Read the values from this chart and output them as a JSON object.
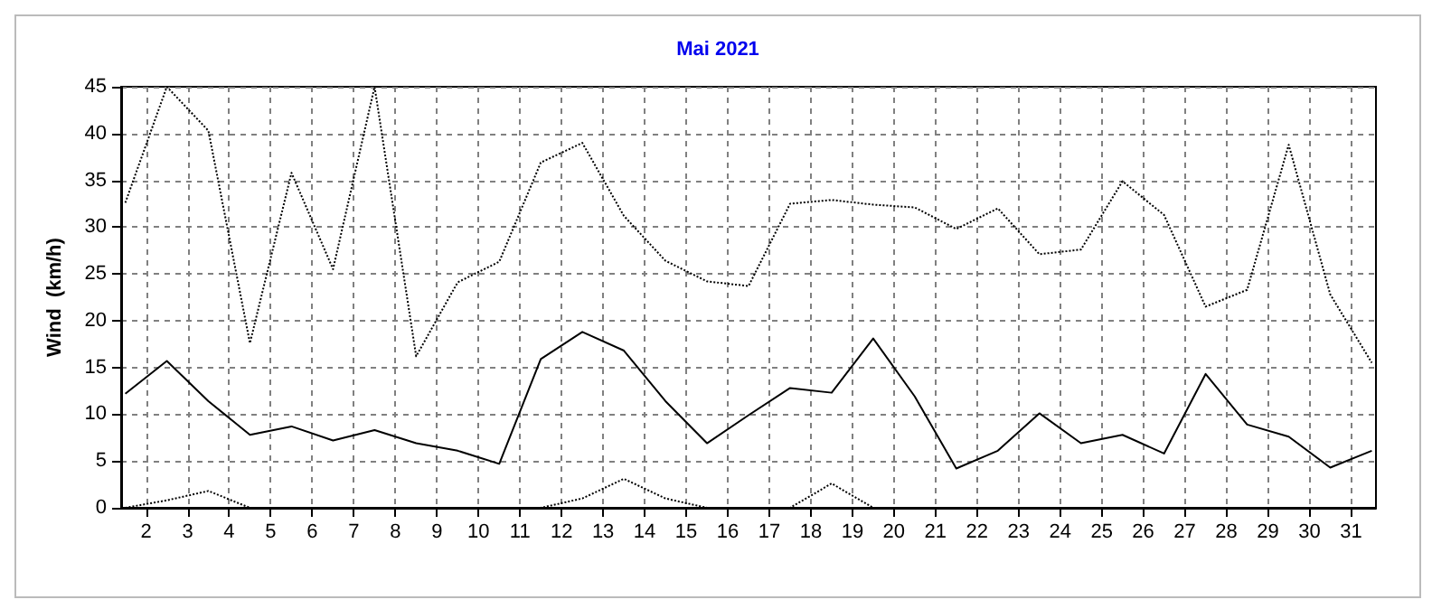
{
  "chart_data": {
    "type": "line",
    "title": "Mai 2021",
    "ylabel": "Wind  (km/h)",
    "x": [
      1.5,
      2.5,
      3.5,
      4.5,
      5.5,
      6.5,
      7.5,
      8.5,
      9.5,
      10.5,
      11.5,
      12.5,
      13.5,
      14.5,
      15.5,
      16.5,
      17.5,
      18.5,
      19.5,
      20.5,
      21.5,
      22.5,
      23.5,
      24.5,
      25.5,
      26.5,
      27.5,
      28.5,
      29.5,
      30.5,
      31.5
    ],
    "series": [
      {
        "color": "#000000",
        "line_style": "dotted",
        "values": [
          32.6,
          45,
          40.3,
          17.6,
          35.8,
          25.5,
          45,
          16.2,
          24.1,
          26.3,
          36.9,
          39,
          31.2,
          26.4,
          24.2,
          23.7,
          32.5,
          32.9,
          32.4,
          32.1,
          29.8,
          32.0,
          27.1,
          27.6,
          34.9,
          31.3,
          21.5,
          23.3,
          38.8,
          22.8,
          15.5
        ]
      },
      {
        "color": "#000000",
        "line_style": "solid",
        "values": [
          12.2,
          15.7,
          11.4,
          7.8,
          8.7,
          7.2,
          8.3,
          6.9,
          6.1,
          4.7,
          15.9,
          18.8,
          16.8,
          11.4,
          6.9,
          9.9,
          12.8,
          12.3,
          18.1,
          11.9,
          4.2,
          6.1,
          10.1,
          6.9,
          7.8,
          5.8,
          14.3,
          8.9,
          7.6,
          4.3,
          6.1
        ]
      },
      {
        "color": "#000000",
        "line_style": "dotted",
        "values": [
          0,
          0.8,
          1.8,
          0,
          0,
          0,
          0,
          0,
          0,
          0,
          0,
          1.0,
          3.1,
          1.0,
          0,
          0,
          0,
          2.6,
          0,
          0,
          0,
          0,
          0,
          0,
          0,
          0,
          0,
          0,
          0,
          0,
          0
        ]
      }
    ],
    "xlim": [
      1.4,
      31.6
    ],
    "xticks": [
      2,
      3,
      4,
      5,
      6,
      7,
      8,
      9,
      10,
      11,
      12,
      13,
      14,
      15,
      16,
      17,
      18,
      19,
      20,
      21,
      22,
      23,
      24,
      25,
      26,
      27,
      28,
      29,
      30,
      31
    ],
    "ylim": [
      0,
      45
    ],
    "yticks": [
      0,
      5,
      10,
      15,
      20,
      25,
      30,
      35,
      40,
      45
    ],
    "grid": true,
    "marker": "none"
  }
}
